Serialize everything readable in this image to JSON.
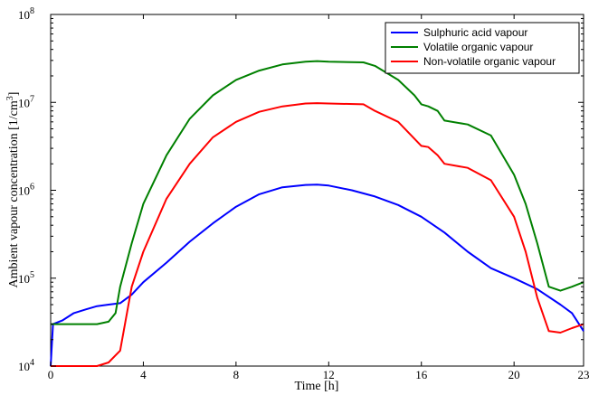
{
  "chart_data": {
    "type": "line",
    "title": "",
    "xlabel": "Time [h]",
    "ylabel_main": "Ambient vapour concentration [1/cm",
    "ylabel_exp": "3",
    "ylabel_close": "]",
    "yscale": "log",
    "xlim": [
      0,
      23
    ],
    "ylim": [
      10000,
      100000000
    ],
    "grid": false,
    "legend_position": "top-right",
    "x_ticks": [
      {
        "value": 0,
        "label": "0"
      },
      {
        "value": 4,
        "label": "4"
      },
      {
        "value": 8,
        "label": "8"
      },
      {
        "value": 12,
        "label": "12"
      },
      {
        "value": 16,
        "label": "16"
      },
      {
        "value": 20,
        "label": "20"
      },
      {
        "value": 23,
        "label": "23"
      }
    ],
    "y_ticks": [
      {
        "value": 10000,
        "base": "10",
        "exp": "4"
      },
      {
        "value": 100000,
        "base": "10",
        "exp": "5"
      },
      {
        "value": 1000000,
        "base": "10",
        "exp": "6"
      },
      {
        "value": 10000000,
        "base": "10",
        "exp": "7"
      },
      {
        "value": 100000000,
        "base": "10",
        "exp": "8"
      }
    ],
    "series": [
      {
        "name": "Sulphuric acid vapour",
        "color": "#0000ff",
        "points": [
          [
            0,
            10000
          ],
          [
            0.1,
            30000
          ],
          [
            0.5,
            33000
          ],
          [
            1,
            40000
          ],
          [
            1.5,
            44000
          ],
          [
            2,
            48000
          ],
          [
            2.5,
            50000
          ],
          [
            3,
            52000
          ],
          [
            3.5,
            65000
          ],
          [
            4,
            90000
          ],
          [
            5,
            150000
          ],
          [
            6,
            260000
          ],
          [
            7,
            420000
          ],
          [
            8,
            650000
          ],
          [
            9,
            900000
          ],
          [
            10,
            1080000
          ],
          [
            11,
            1150000
          ],
          [
            11.5,
            1160000
          ],
          [
            12,
            1130000
          ],
          [
            13,
            1000000
          ],
          [
            14,
            850000
          ],
          [
            15,
            680000
          ],
          [
            16,
            500000
          ],
          [
            17,
            330000
          ],
          [
            18,
            200000
          ],
          [
            19,
            130000
          ],
          [
            20,
            100000
          ],
          [
            21,
            75000
          ],
          [
            22,
            50000
          ],
          [
            22.5,
            40000
          ],
          [
            23,
            25000
          ]
        ]
      },
      {
        "name": "Volatile organic vapour",
        "color": "#008000",
        "points": [
          [
            0,
            30000
          ],
          [
            1,
            30000
          ],
          [
            2,
            30000
          ],
          [
            2.5,
            32000
          ],
          [
            2.8,
            40000
          ],
          [
            3,
            80000
          ],
          [
            3.5,
            250000
          ],
          [
            4,
            700000
          ],
          [
            5,
            2500000
          ],
          [
            6,
            6500000
          ],
          [
            7,
            12000000
          ],
          [
            8,
            18000000
          ],
          [
            9,
            23000000
          ],
          [
            10,
            27000000
          ],
          [
            11,
            29000000
          ],
          [
            11.5,
            29500000
          ],
          [
            12,
            29000000
          ],
          [
            13.5,
            28500000
          ],
          [
            14,
            26000000
          ],
          [
            15,
            18000000
          ],
          [
            15.7,
            12000000
          ],
          [
            16,
            9500000
          ],
          [
            16.3,
            9000000
          ],
          [
            16.7,
            8000000
          ],
          [
            17,
            6200000
          ],
          [
            18,
            5600000
          ],
          [
            19,
            4200000
          ],
          [
            20,
            1500000
          ],
          [
            20.5,
            700000
          ],
          [
            21,
            250000
          ],
          [
            21.5,
            80000
          ],
          [
            22,
            72000
          ],
          [
            22.5,
            80000
          ],
          [
            23,
            90000
          ]
        ]
      },
      {
        "name": "Non-volatile organic vapour",
        "color": "#ff0000",
        "points": [
          [
            0,
            10000
          ],
          [
            1,
            10000
          ],
          [
            2,
            10000
          ],
          [
            2.5,
            11000
          ],
          [
            3,
            15000
          ],
          [
            3.5,
            80000
          ],
          [
            4,
            200000
          ],
          [
            5,
            800000
          ],
          [
            6,
            2000000
          ],
          [
            7,
            4000000
          ],
          [
            8,
            6000000
          ],
          [
            9,
            7800000
          ],
          [
            10,
            9000000
          ],
          [
            11,
            9700000
          ],
          [
            11.5,
            9800000
          ],
          [
            12,
            9700000
          ],
          [
            13.5,
            9500000
          ],
          [
            14,
            8000000
          ],
          [
            15,
            6000000
          ],
          [
            16,
            3200000
          ],
          [
            16.3,
            3100000
          ],
          [
            16.7,
            2500000
          ],
          [
            17,
            2000000
          ],
          [
            18,
            1800000
          ],
          [
            19,
            1300000
          ],
          [
            20,
            500000
          ],
          [
            20.5,
            200000
          ],
          [
            21,
            60000
          ],
          [
            21.5,
            25000
          ],
          [
            22,
            24000
          ],
          [
            22.5,
            27000
          ],
          [
            23,
            30000
          ]
        ]
      }
    ]
  }
}
